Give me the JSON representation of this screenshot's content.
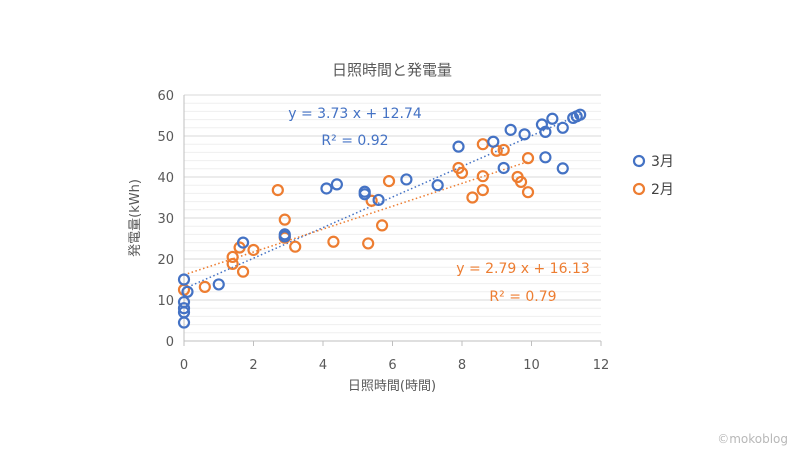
{
  "watermark": "©mokoblog",
  "chart_data": {
    "type": "scatter",
    "title": "日照時間と発電量",
    "xlabel": "日照時間(時間)",
    "ylabel": "発電量(kWh)",
    "xlim": [
      0,
      12
    ],
    "ylim": [
      0,
      60
    ],
    "xticks": [
      0,
      2,
      4,
      6,
      8,
      10,
      12
    ],
    "yticks": [
      0,
      10,
      20,
      30,
      40,
      50,
      60
    ],
    "grid": true,
    "legend_position": "right",
    "series": [
      {
        "name": "3月",
        "color": "#4472C4",
        "points": [
          [
            0,
            15
          ],
          [
            0,
            9.5
          ],
          [
            0,
            8
          ],
          [
            0,
            7
          ],
          [
            0,
            4.5
          ],
          [
            0.1,
            12
          ],
          [
            1.0,
            13.8
          ],
          [
            1.7,
            24
          ],
          [
            2.9,
            26
          ],
          [
            2.9,
            25.5
          ],
          [
            4.1,
            37.2
          ],
          [
            4.4,
            38.2
          ],
          [
            5.2,
            36.4
          ],
          [
            5.2,
            35.8
          ],
          [
            5.6,
            34.4
          ],
          [
            6.4,
            39.4
          ],
          [
            7.3,
            38
          ],
          [
            7.9,
            47.4
          ],
          [
            8.9,
            48.6
          ],
          [
            9.2,
            42.2
          ],
          [
            9.4,
            51.5
          ],
          [
            9.8,
            50.4
          ],
          [
            10.3,
            52.8
          ],
          [
            10.4,
            51
          ],
          [
            10.4,
            44.8
          ],
          [
            10.6,
            54.2
          ],
          [
            10.9,
            52
          ],
          [
            10.9,
            42.1
          ],
          [
            11.2,
            54.4
          ],
          [
            11.3,
            54.8
          ],
          [
            11.4,
            55.2
          ]
        ],
        "trendline": {
          "slope": 3.73,
          "intercept": 12.74,
          "equation": "y = 3.73 x + 12.74",
          "r2": "R² = 0.92"
        }
      },
      {
        "name": "2月",
        "color": "#ED7D31",
        "points": [
          [
            0,
            12.5
          ],
          [
            0.6,
            13.2
          ],
          [
            1.4,
            20.5
          ],
          [
            1.4,
            18.8
          ],
          [
            1.6,
            22.8
          ],
          [
            1.7,
            16.9
          ],
          [
            2.0,
            22.2
          ],
          [
            2.7,
            36.8
          ],
          [
            2.9,
            29.6
          ],
          [
            2.9,
            25.2
          ],
          [
            3.2,
            23
          ],
          [
            4.3,
            24.2
          ],
          [
            5.3,
            23.8
          ],
          [
            5.4,
            34.2
          ],
          [
            5.7,
            28.2
          ],
          [
            5.9,
            39
          ],
          [
            7.9,
            42.2
          ],
          [
            8.0,
            41
          ],
          [
            8.3,
            35
          ],
          [
            8.6,
            48
          ],
          [
            8.6,
            40.2
          ],
          [
            8.6,
            36.8
          ],
          [
            9.0,
            46.4
          ],
          [
            9.2,
            46.6
          ],
          [
            9.6,
            40
          ],
          [
            9.7,
            38.8
          ],
          [
            9.9,
            44.6
          ],
          [
            9.9,
            36.3
          ]
        ],
        "trendline": {
          "slope": 2.79,
          "intercept": 16.13,
          "equation": "y = 2.79 x + 16.13",
          "r2": "R² = 0.79"
        }
      }
    ]
  }
}
